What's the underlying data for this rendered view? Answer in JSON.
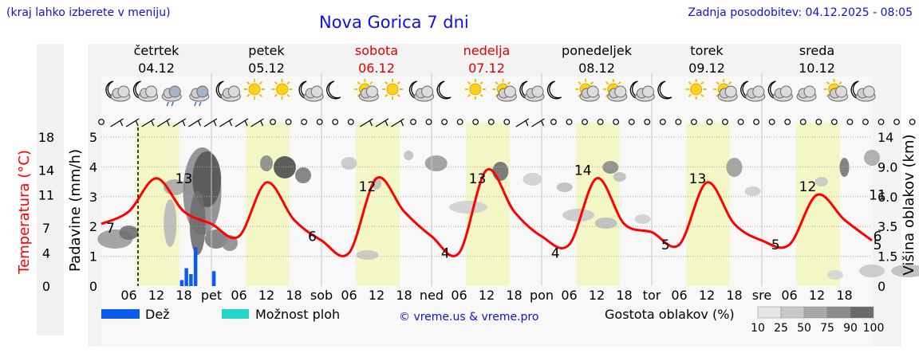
{
  "header": {
    "hint": "(kraj lahko izberete v meniju)",
    "title": "Nova Gorica 7 dni",
    "updated": "Zadnja posodobitev: 04.12.2025 - 08:05"
  },
  "days": [
    {
      "name": "četrtek",
      "date": "04.12",
      "weekend": false,
      "abbr": ""
    },
    {
      "name": "petek",
      "date": "05.12",
      "weekend": false,
      "abbr": "pet"
    },
    {
      "name": "sobota",
      "date": "06.12",
      "weekend": true,
      "abbr": "sob"
    },
    {
      "name": "nedelja",
      "date": "07.12",
      "weekend": true,
      "abbr": "ned"
    },
    {
      "name": "ponedeljek",
      "date": "08.12",
      "weekend": false,
      "abbr": "pon"
    },
    {
      "name": "torek",
      "date": "09.12",
      "weekend": false,
      "abbr": "tor"
    },
    {
      "name": "sreda",
      "date": "10.12",
      "weekend": false,
      "abbr": "sre"
    }
  ],
  "icons": [
    "moon-cloud",
    "moon-cloud",
    "cloud-rain",
    "cloud-rain",
    "moon-cloud",
    "sun",
    "sun",
    "moon-cloud",
    "moon",
    "sun-cloud",
    "sun",
    "moon-cloud",
    "moon",
    "sun",
    "sun-cloud",
    "moon-cloud",
    "moon",
    "sun-cloud",
    "sun-cloud",
    "moon-cloud",
    "moon",
    "sun",
    "sun-cloud",
    "moon-cloud",
    "moon-cloud",
    "cloud",
    "sun-cloud",
    "moon-cloud"
  ],
  "chart_data": {
    "type": "line",
    "title": "Nova Gorica 7 dni",
    "xlabel": "",
    "x_ticks": [
      "06",
      "12",
      "18",
      "pet",
      "06",
      "12",
      "18",
      "sob",
      "06",
      "12",
      "18",
      "ned",
      "06",
      "12",
      "18",
      "pon",
      "06",
      "12",
      "18",
      "tor",
      "06",
      "12",
      "18",
      "sre",
      "06",
      "12",
      "18"
    ],
    "left_axis_outer": {
      "label": "Temperatura (°C)",
      "ticks": [
        "18",
        "14",
        "11",
        "7",
        "4",
        "0"
      ],
      "color": "#ff0000"
    },
    "left_axis_inner": {
      "label": "Padavine (mm/h)",
      "ticks": [
        "5",
        "4",
        "3",
        "2",
        "1",
        "0"
      ],
      "range": [
        0,
        5
      ]
    },
    "right_axis": {
      "label": "Višina oblakov (km)",
      "ticks": [
        "14",
        "9.0",
        "6.0",
        "3.5",
        "1.5",
        "0"
      ]
    },
    "temperature": {
      "hours": [
        0,
        6,
        12,
        18,
        24,
        30,
        36,
        42,
        48,
        54,
        60,
        66,
        72,
        78,
        84,
        90,
        96,
        102,
        108,
        114,
        120,
        126,
        132,
        138,
        144,
        150,
        156,
        162,
        168
      ],
      "values": [
        7.5,
        9,
        13,
        9,
        7.5,
        6,
        12.5,
        8,
        5.5,
        4,
        13,
        9,
        6,
        4,
        14,
        9,
        6,
        5,
        13,
        7.5,
        6.5,
        5,
        12.5,
        7.5,
        5.5,
        5,
        11,
        8,
        5.5
      ]
    },
    "temperature_labels": [
      {
        "hour": 2,
        "text": "7"
      },
      {
        "hour": 18,
        "text": "13"
      },
      {
        "hour": 46,
        "text": "6"
      },
      {
        "hour": 58,
        "text": "12"
      },
      {
        "hour": 75,
        "text": "4"
      },
      {
        "hour": 82,
        "text": "13"
      },
      {
        "hour": 99,
        "text": "4"
      },
      {
        "hour": 105,
        "text": "14"
      },
      {
        "hour": 123,
        "text": "5"
      },
      {
        "hour": 130,
        "text": "13"
      },
      {
        "hour": 147,
        "text": "5"
      },
      {
        "hour": 154,
        "text": "12"
      },
      {
        "hour": 171,
        "text": "5"
      },
      {
        "hour": 178,
        "text": "11"
      },
      {
        "hour": 192,
        "text": "6"
      }
    ],
    "precipitation": [
      {
        "hour": 17.5,
        "mm": 0.2
      },
      {
        "hour": 18.5,
        "mm": 0.6
      },
      {
        "hour": 19.5,
        "mm": 0.4
      },
      {
        "hour": 20.5,
        "mm": 1.3
      },
      {
        "hour": 24.5,
        "mm": 0.5
      }
    ],
    "now_hour": 8,
    "legend": {
      "rain": "Dež",
      "rain_color": "#0b5bf0",
      "storm": "Možnost ploh",
      "storm_color": "#1fd6c8",
      "credit": "© vreme.us & vreme.pro",
      "cloud_density": "Gostota oblakov (%)",
      "density_levels": [
        "10",
        "25",
        "50",
        "75",
        "90",
        "100"
      ]
    }
  }
}
